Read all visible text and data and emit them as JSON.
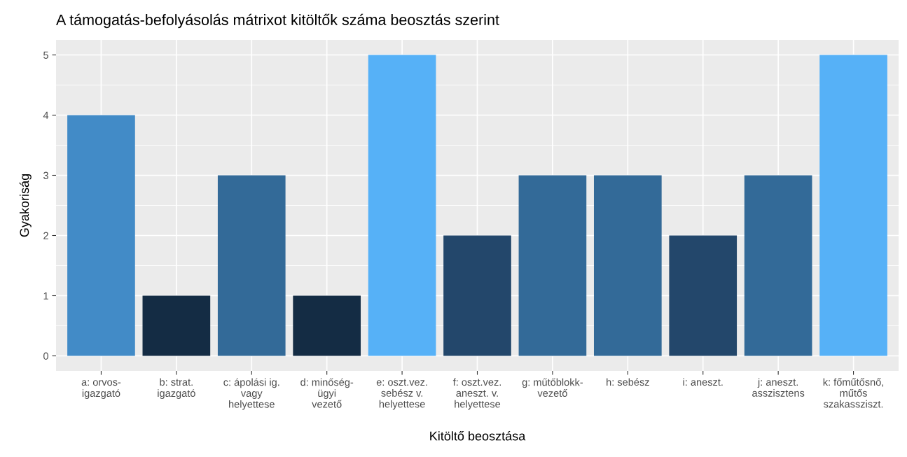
{
  "chart_data": {
    "type": "bar",
    "title": "A támogatás-befolyásolás mátrixot kitöltők száma beosztás szerint",
    "xlabel": "Kitöltő beosztása",
    "ylabel": "Gyakoriság",
    "categories": [
      "a: orvos-\nigazgató",
      "b: strat.\nigazgató",
      "c: ápolási ig.\nvagy\nhelyettese",
      "d: minőség-\nügyi\nvezető",
      "e: oszt.vez.\nsebész v.\nhelyettese",
      "f: oszt.vez.\naneszt. v.\nhelyettese",
      "g: műtőblokk-\nvezető",
      "h: sebész",
      "i: aneszt.",
      "j: aneszt.\nasszisztens",
      "k: főműtősnő,\nműtős\nszakassziszt."
    ],
    "values": [
      4,
      1,
      3,
      1,
      5,
      2,
      3,
      3,
      2,
      3,
      5
    ],
    "colors": [
      "#428bc7",
      "#142c44",
      "#336a98",
      "#142c44",
      "#56b1f7",
      "#23476b",
      "#336a98",
      "#336a98",
      "#23476b",
      "#336a98",
      "#56b1f7"
    ],
    "ylim": [
      -0.25,
      5.25
    ],
    "yticks": [
      0,
      1,
      2,
      3,
      4,
      5
    ],
    "grid": true
  }
}
